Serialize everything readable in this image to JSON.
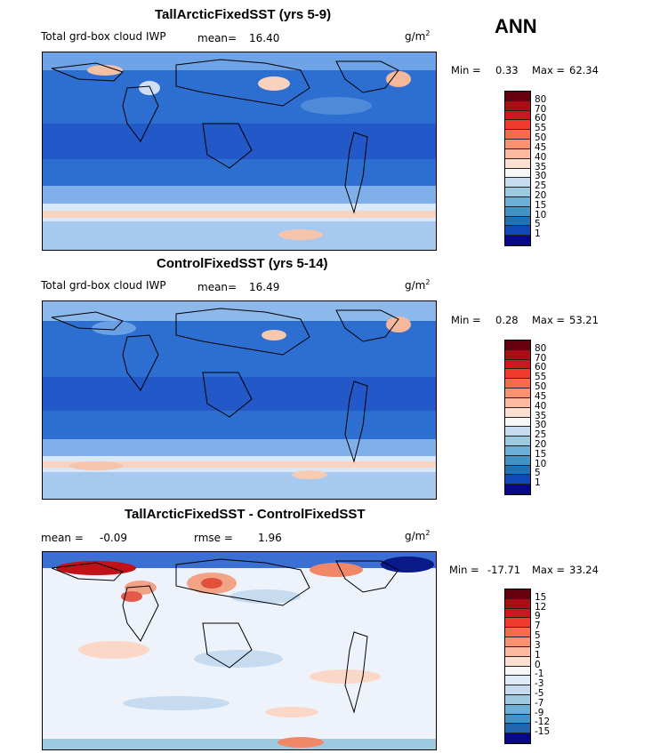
{
  "season": "ANN",
  "panels": [
    {
      "title": "TallArcticFixedSST (yrs 5-9)",
      "subtitle": "Total grd-box cloud IWP",
      "mean_label": "mean=",
      "mean_value": "16.40",
      "units": "g/m",
      "units_exp": "2",
      "min_label": "Min =",
      "min_value": "0.33",
      "max_label": "Max =",
      "max_value": "62.34",
      "colorbar_labels": [
        "80",
        "70",
        "60",
        "55",
        "50",
        "45",
        "40",
        "35",
        "30",
        "25",
        "20",
        "15",
        "10",
        "5",
        "1"
      ]
    },
    {
      "title": "ControlFixedSST (yrs 5-14)",
      "subtitle": "Total grd-box cloud IWP",
      "mean_label": "mean=",
      "mean_value": "16.49",
      "units": "g/m",
      "units_exp": "2",
      "min_label": "Min =",
      "min_value": "0.28",
      "max_label": "Max =",
      "max_value": "53.21",
      "colorbar_labels": [
        "80",
        "70",
        "60",
        "55",
        "50",
        "45",
        "40",
        "35",
        "30",
        "25",
        "20",
        "15",
        "10",
        "5",
        "1"
      ]
    },
    {
      "title": "TallArcticFixedSST - ControlFixedSST",
      "mean_label": "mean =",
      "mean_value": "-0.09",
      "rmse_label": "rmse =",
      "rmse_value": "1.96",
      "units": "g/m",
      "units_exp": "2",
      "min_label": "Min =",
      "min_value": "-17.71",
      "max_label": "Max =",
      "max_value": "33.24",
      "colorbar_labels": [
        "15",
        "12",
        "9",
        "7",
        "5",
        "3",
        "1",
        "0",
        "-1",
        "-3",
        "-5",
        "-7",
        "-9",
        "-12",
        "-15"
      ]
    }
  ],
  "colors": {
    "abs_scale": [
      "#67000d",
      "#a50f15",
      "#cb181d",
      "#ef3b2c",
      "#fb6a4a",
      "#fc9272",
      "#fcbba1",
      "#fde0d2",
      "#f7f7f7",
      "#c6dbef",
      "#9ecae1",
      "#6baed6",
      "#4292c6",
      "#2171b5",
      "#1048b8",
      "#08088a"
    ],
    "diff_scale": [
      "#67000d",
      "#a50f15",
      "#cb181d",
      "#ef3b2c",
      "#fb6a4a",
      "#fc9272",
      "#fcbba1",
      "#fde0d2",
      "#f7f7f7",
      "#deebf7",
      "#c6dbef",
      "#9ecae1",
      "#6baed6",
      "#4292c6",
      "#2166ac",
      "#08088a"
    ]
  }
}
